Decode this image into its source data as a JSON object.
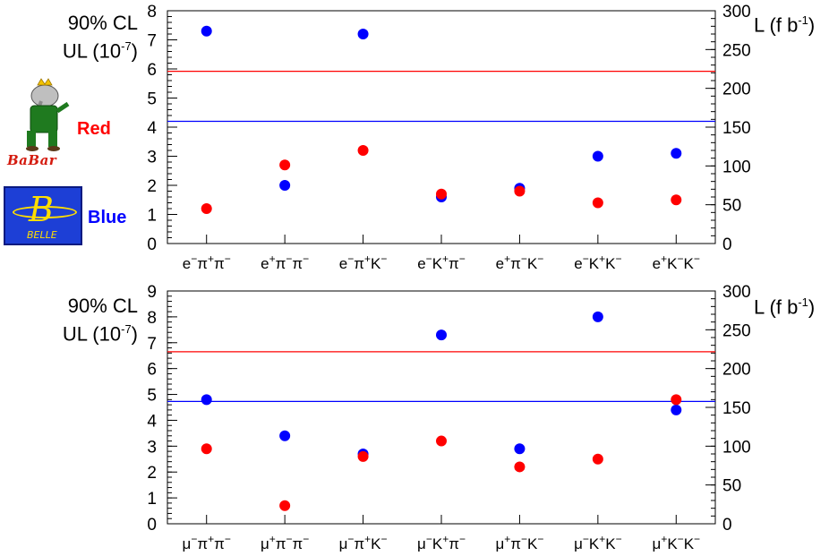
{
  "legend": {
    "red_label": "Red",
    "blue_label": "Blue",
    "red_logo_text": "BaBar",
    "blue_logo_text": "BELLE",
    "red_color": "#ff0000",
    "blue_color": "#0000ff"
  },
  "chart_data": [
    {
      "type": "scatter",
      "title": "",
      "ylabel_line1": "90% CL",
      "ylabel_line2": "UL (10",
      "ylabel_exp": "-7",
      "ylabel_close": ")",
      "y2label_text": "L (f b",
      "y2label_exp": "-1",
      "y2label_close": ")",
      "ylim": [
        0,
        8
      ],
      "yticks": [
        0,
        1,
        2,
        3,
        4,
        5,
        6,
        7,
        8
      ],
      "y2lim": [
        0,
        300
      ],
      "y2ticks": [
        0,
        50,
        100,
        150,
        200,
        250,
        300
      ],
      "categories": [
        {
          "base": "e",
          "sups": [
            "-",
            "+",
            "-"
          ],
          "mids": [
            "π",
            "π"
          ]
        },
        {
          "base": "e",
          "sups": [
            "+",
            "-",
            "-"
          ],
          "mids": [
            "π",
            "π"
          ]
        },
        {
          "base": "e",
          "sups": [
            "-",
            "+",
            "-"
          ],
          "mids": [
            "π",
            "K"
          ]
        },
        {
          "base": "e",
          "sups": [
            "-",
            "+",
            "-"
          ],
          "mids": [
            "K",
            "π"
          ]
        },
        {
          "base": "e",
          "sups": [
            "+",
            "-",
            "-"
          ],
          "mids": [
            "π",
            "K"
          ]
        },
        {
          "base": "e",
          "sups": [
            "-",
            "+",
            "-"
          ],
          "mids": [
            "K",
            "K"
          ]
        },
        {
          "base": "e",
          "sups": [
            "+",
            "-",
            "-"
          ],
          "mids": [
            "K",
            "K"
          ]
        }
      ],
      "series": [
        {
          "color": "#0000ff",
          "values": [
            7.3,
            2.0,
            7.2,
            1.6,
            1.9,
            3.0,
            3.1
          ]
        },
        {
          "color": "#ff0000",
          "values": [
            1.2,
            2.7,
            3.2,
            1.7,
            1.8,
            1.4,
            1.5
          ]
        }
      ],
      "lines": [
        {
          "color": "#ff0000",
          "y": 5.92
        },
        {
          "color": "#0000ff",
          "y": 4.2
        }
      ],
      "grid": false
    },
    {
      "type": "scatter",
      "title": "",
      "ylabel_line1": "90% CL",
      "ylabel_line2": "UL (10",
      "ylabel_exp": "-7",
      "ylabel_close": ")",
      "y2label_text": "L (f b",
      "y2label_exp": "-1",
      "y2label_close": ")",
      "ylim": [
        0,
        9
      ],
      "yticks": [
        0,
        1,
        2,
        3,
        4,
        5,
        6,
        7,
        8,
        9
      ],
      "y2lim": [
        0,
        300
      ],
      "y2ticks": [
        0,
        50,
        100,
        150,
        200,
        250,
        300
      ],
      "categories": [
        {
          "base": "μ",
          "sups": [
            "-",
            "+",
            "-"
          ],
          "mids": [
            "π",
            "π"
          ]
        },
        {
          "base": "μ",
          "sups": [
            "+",
            "-",
            "-"
          ],
          "mids": [
            "π",
            "π"
          ]
        },
        {
          "base": "μ",
          "sups": [
            "-",
            "+",
            "-"
          ],
          "mids": [
            "π",
            "K"
          ]
        },
        {
          "base": "μ",
          "sups": [
            "-",
            "+",
            "-"
          ],
          "mids": [
            "K",
            "π"
          ]
        },
        {
          "base": "μ",
          "sups": [
            "+",
            "-",
            "-"
          ],
          "mids": [
            "π",
            "K"
          ]
        },
        {
          "base": "μ",
          "sups": [
            "-",
            "+",
            "-"
          ],
          "mids": [
            "K",
            "K"
          ]
        },
        {
          "base": "μ",
          "sups": [
            "+",
            "-",
            "-"
          ],
          "mids": [
            "K",
            "K"
          ]
        }
      ],
      "series": [
        {
          "color": "#0000ff",
          "values": [
            4.8,
            3.4,
            2.7,
            7.3,
            2.9,
            8.0,
            4.4
          ]
        },
        {
          "color": "#ff0000",
          "values": [
            2.9,
            0.7,
            2.6,
            3.2,
            2.2,
            2.5,
            4.8
          ]
        }
      ],
      "lines": [
        {
          "color": "#ff0000",
          "y": 6.65
        },
        {
          "color": "#0000ff",
          "y": 4.73
        }
      ],
      "grid": false
    }
  ]
}
